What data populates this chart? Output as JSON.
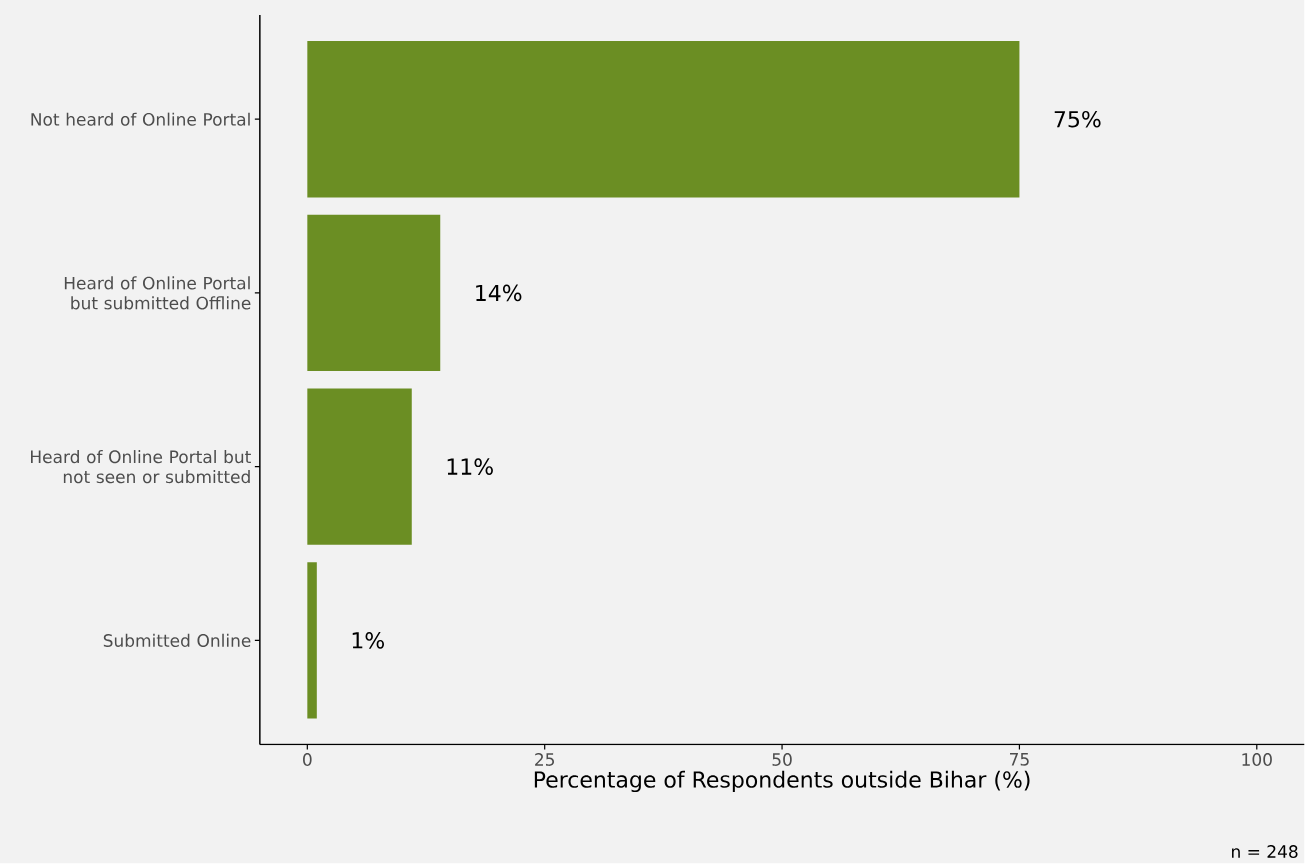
{
  "chart_data": {
    "type": "bar",
    "orientation": "horizontal",
    "categories": [
      "Not heard of Online Portal",
      "Heard of Online Portal but submitted Offline",
      "Heard of Online Portal but not seen or submitted",
      "Submitted Online"
    ],
    "values": [
      75,
      14,
      11,
      1
    ],
    "value_labels": [
      "75%",
      "14%",
      "11%",
      "1%"
    ],
    "color": "#6b8e23",
    "xlabel": "Percentage of Respondents outside Bihar (%)",
    "xlim": [
      -5,
      105
    ],
    "xticks": [
      0,
      25,
      50,
      75,
      100
    ],
    "annotations": [
      "n = 248"
    ]
  }
}
